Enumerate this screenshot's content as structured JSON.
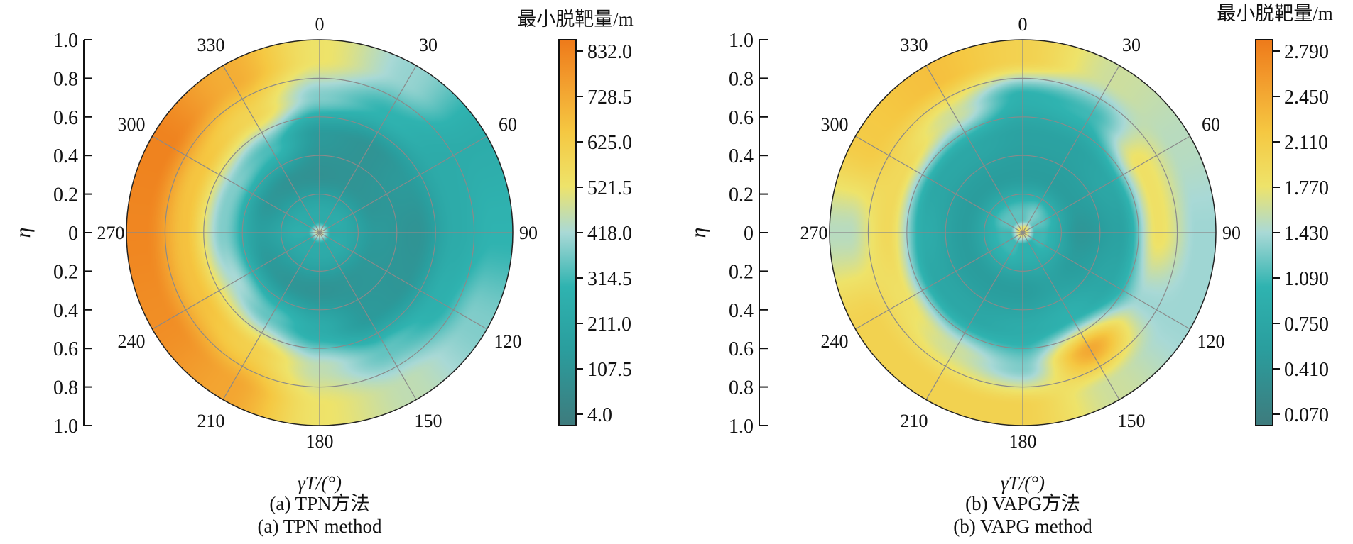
{
  "chart_data": [
    {
      "type": "heatmap",
      "projection": "polar",
      "caption_cn": "(a) TPN方法",
      "caption_en": "(a) TPN method",
      "xlabel": "γT/(°)",
      "ylabel": "η",
      "colorbar_title": "最小脱靶量/m",
      "colorbar_ticks": [
        "832.0",
        "728.5",
        "625.0",
        "521.5",
        "418.0",
        "314.5",
        "211.0",
        "107.5",
        "4.0"
      ],
      "colorbar_range": [
        4.0,
        832.0
      ],
      "radial_ticks": [
        "1.0",
        "0.8",
        "0.6",
        "0.4",
        "0.2",
        "0",
        "0.2",
        "0.4",
        "0.6",
        "0.8",
        "1.0"
      ],
      "angle_ticks": [
        "0",
        "30",
        "60",
        "90",
        "120",
        "150",
        "180",
        "210",
        "240",
        "270",
        "300",
        "330"
      ],
      "grid": true,
      "angles_deg": [
        0,
        30,
        60,
        90,
        120,
        150,
        180,
        210,
        240,
        270,
        300,
        330
      ],
      "radii": [
        0.1,
        0.3,
        0.5,
        0.7,
        0.9
      ],
      "values": [
        [
          250,
          110,
          150,
          380,
          520
        ],
        [
          250,
          120,
          120,
          300,
          400
        ],
        [
          260,
          130,
          150,
          250,
          260
        ],
        [
          250,
          150,
          120,
          250,
          300
        ],
        [
          260,
          140,
          130,
          280,
          380
        ],
        [
          250,
          130,
          150,
          350,
          450
        ],
        [
          250,
          120,
          260,
          450,
          520
        ],
        [
          250,
          130,
          350,
          600,
          720
        ],
        [
          250,
          150,
          420,
          650,
          780
        ],
        [
          280,
          180,
          380,
          650,
          800
        ],
        [
          260,
          140,
          380,
          640,
          810
        ],
        [
          250,
          120,
          330,
          580,
          700
        ]
      ]
    },
    {
      "type": "heatmap",
      "projection": "polar",
      "caption_cn": "(b) VAPG方法",
      "caption_en": "(b) VAPG method",
      "xlabel": "γT/(°)",
      "ylabel": "η",
      "colorbar_title": "最小脱靶量/m",
      "colorbar_ticks": [
        "2.790",
        "2.450",
        "2.110",
        "1.770",
        "1.430",
        "1.090",
        "0.750",
        "0.410",
        "0.070"
      ],
      "colorbar_range": [
        0.07,
        2.79
      ],
      "radial_ticks": [
        "1.0",
        "0.8",
        "0.6",
        "0.4",
        "0.2",
        "0",
        "0.2",
        "0.4",
        "0.6",
        "0.8",
        "1.0"
      ],
      "angle_ticks": [
        "0",
        "30",
        "60",
        "90",
        "120",
        "150",
        "180",
        "210",
        "240",
        "270",
        "300",
        "330"
      ],
      "grid": true,
      "angles_deg": [
        0,
        30,
        60,
        90,
        120,
        150,
        180,
        210,
        240,
        270,
        300,
        330
      ],
      "radii": [
        0.1,
        0.3,
        0.5,
        0.7,
        0.9
      ],
      "values": [
        [
          1.2,
          0.6,
          0.7,
          1.0,
          2.0
        ],
        [
          1.3,
          0.6,
          0.7,
          1.1,
          1.6
        ],
        [
          1.2,
          0.6,
          0.8,
          1.8,
          1.5
        ],
        [
          1.1,
          0.5,
          0.7,
          1.8,
          1.4
        ],
        [
          1.1,
          0.6,
          0.8,
          1.4,
          1.4
        ],
        [
          1.0,
          0.7,
          1.0,
          2.4,
          1.6
        ],
        [
          1.0,
          0.6,
          0.9,
          1.3,
          2.0
        ],
        [
          1.1,
          0.6,
          0.8,
          1.6,
          2.0
        ],
        [
          1.1,
          0.6,
          0.8,
          1.8,
          2.0
        ],
        [
          1.1,
          0.6,
          0.9,
          1.9,
          1.5
        ],
        [
          1.2,
          0.6,
          0.8,
          1.9,
          2.1
        ],
        [
          1.2,
          0.6,
          0.8,
          1.6,
          2.2
        ]
      ]
    }
  ],
  "colors": {
    "low": "#3e7b7d",
    "mid": "#a9d9d6",
    "high": "#ee7a1a",
    "grid": "#8a8a8a"
  }
}
